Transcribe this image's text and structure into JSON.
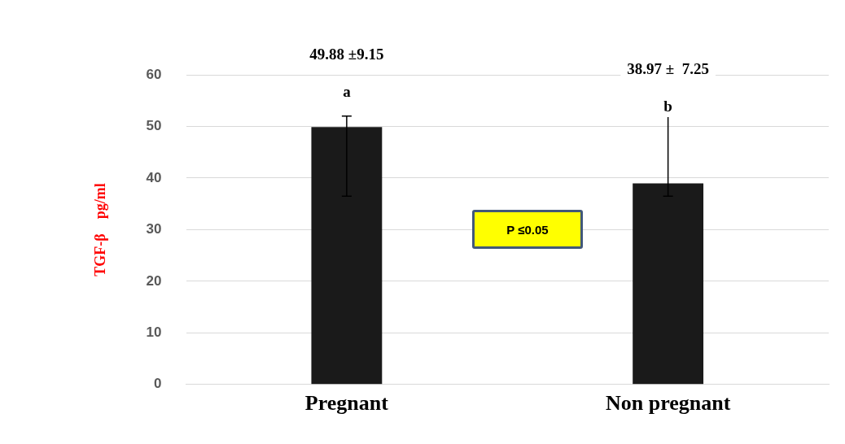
{
  "chart_data": {
    "type": "bar",
    "ylabel": "TGF-β    pg/ml",
    "categories": [
      "Pregnant",
      "Non pregnant"
    ],
    "series": [
      {
        "color": "#1a1a1a",
        "values": [
          49.88,
          38.97
        ],
        "errors": [
          [
            36.5,
            52
          ],
          [
            36.5,
            52
          ]
        ]
      }
    ],
    "ylim": [
      0,
      60
    ],
    "yticks": [
      0,
      10,
      20,
      30,
      40,
      50,
      60
    ],
    "grid": "y",
    "legend": false,
    "annotations": [
      "49.88 ±9.15",
      "a",
      "38.97 ±  7.25",
      "b",
      "P ≤0.05"
    ]
  }
}
